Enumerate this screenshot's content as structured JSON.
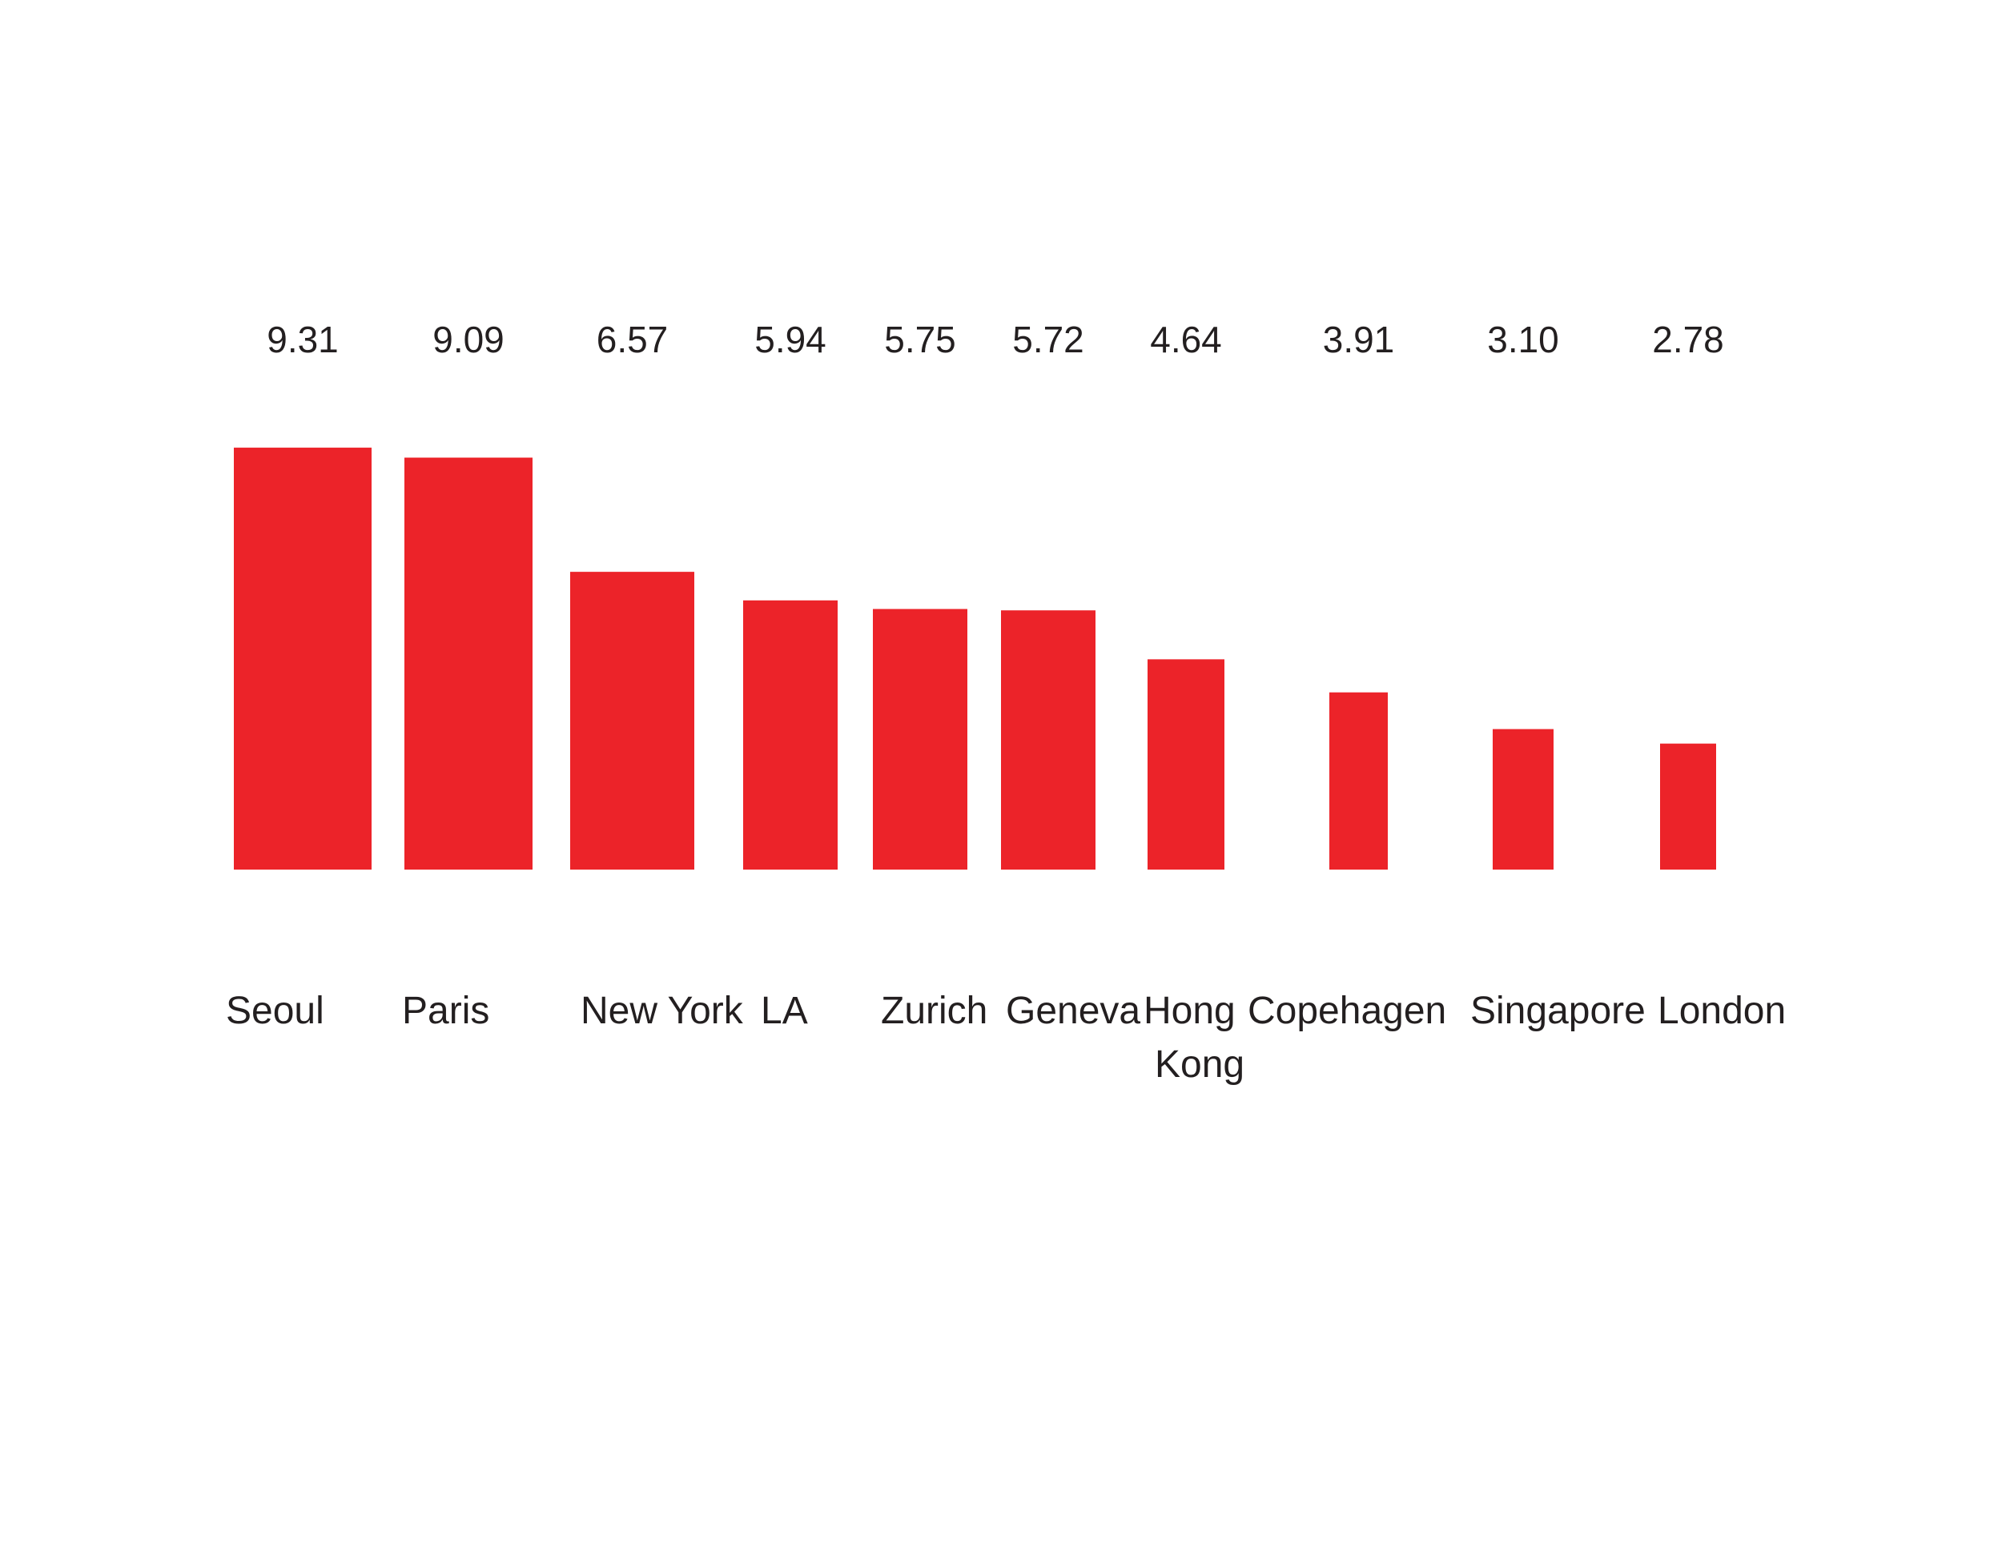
{
  "chart_data": {
    "type": "bar",
    "categories": [
      "Seoul",
      "Paris",
      "New York",
      "LA",
      "Zurich",
      "Geneva",
      "Hong Kong",
      "Copehagen",
      "Singapore",
      "London"
    ],
    "values": [
      9.31,
      9.09,
      6.57,
      5.94,
      5.75,
      5.72,
      4.64,
      3.91,
      3.1,
      2.78
    ],
    "value_labels": [
      "9.31",
      "9.09",
      "6.57",
      "5.94",
      "5.75",
      "5.72",
      "4.64",
      "3.91",
      "3.10",
      "2.78"
    ],
    "title": "",
    "xlabel": "",
    "ylabel": "",
    "grid": false,
    "legend": "none",
    "bar_color": "#ec2329",
    "text_color": "#231f20",
    "background": "#ffffff"
  }
}
